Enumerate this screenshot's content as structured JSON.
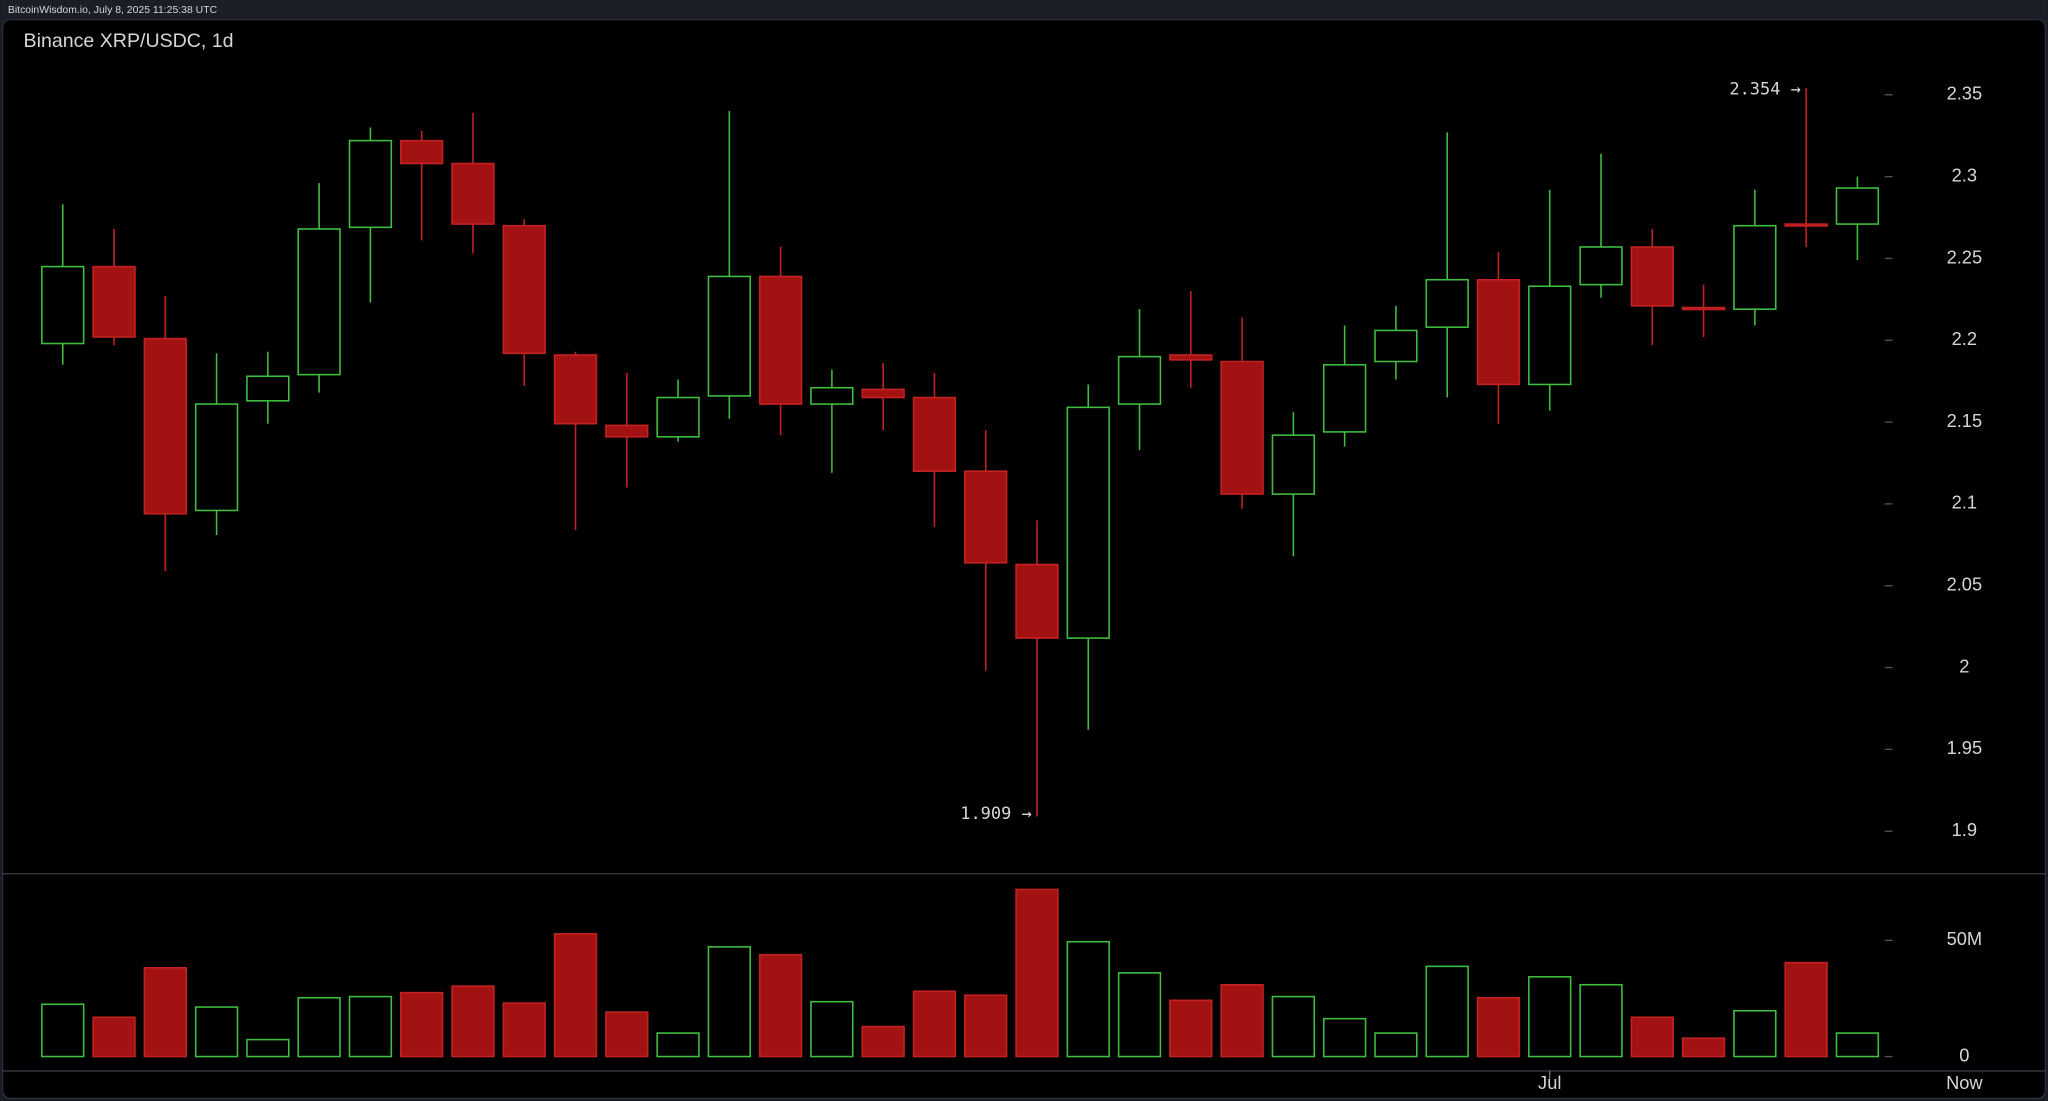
{
  "header": {
    "text": "BitcoinWisdom.io, July 8, 2025 11:25:38 UTC"
  },
  "chart_data": {
    "type": "candlestick",
    "title": "Binance XRP/USDC, 1d",
    "categories": [
      null,
      null,
      null,
      null,
      null,
      null,
      null,
      null,
      null,
      null,
      null,
      null,
      null,
      null,
      null,
      null,
      null,
      null,
      null,
      null,
      null,
      null,
      null,
      null,
      null,
      null,
      null,
      null,
      null,
      "Jul",
      null,
      null,
      null,
      null,
      null,
      null
    ],
    "now_label": "Now",
    "open": [
      2.198,
      2.245,
      2.201,
      2.096,
      2.163,
      2.179,
      2.269,
      2.322,
      2.308,
      2.27,
      2.191,
      2.148,
      2.141,
      2.166,
      2.239,
      2.161,
      2.17,
      2.165,
      2.12,
      2.063,
      2.018,
      2.161,
      2.191,
      2.187,
      2.106,
      2.144,
      2.187,
      2.208,
      2.237,
      2.173,
      2.234,
      2.257,
      2.22,
      2.219,
      2.271,
      2.271
    ],
    "high": [
      2.283,
      2.268,
      2.227,
      2.192,
      2.193,
      2.296,
      2.33,
      2.328,
      2.339,
      2.274,
      2.193,
      2.18,
      2.176,
      2.34,
      2.257,
      2.182,
      2.186,
      2.18,
      2.145,
      2.09,
      2.173,
      2.219,
      2.23,
      2.214,
      2.156,
      2.209,
      2.221,
      2.327,
      2.254,
      2.292,
      2.314,
      2.268,
      2.234,
      2.292,
      2.354,
      2.3
    ],
    "low": [
      2.185,
      2.197,
      2.059,
      2.081,
      2.149,
      2.168,
      2.223,
      2.261,
      2.253,
      2.172,
      2.084,
      2.11,
      2.138,
      2.152,
      2.142,
      2.119,
      2.145,
      2.086,
      1.998,
      1.909,
      1.962,
      2.133,
      2.171,
      2.097,
      2.068,
      2.135,
      2.176,
      2.165,
      2.149,
      2.157,
      2.226,
      2.197,
      2.202,
      2.209,
      2.257,
      2.249
    ],
    "close": [
      2.245,
      2.202,
      2.094,
      2.161,
      2.178,
      2.268,
      2.322,
      2.308,
      2.271,
      2.192,
      2.149,
      2.141,
      2.165,
      2.239,
      2.161,
      2.171,
      2.165,
      2.12,
      2.064,
      2.018,
      2.159,
      2.19,
      2.188,
      2.106,
      2.142,
      2.185,
      2.206,
      2.237,
      2.173,
      2.233,
      2.257,
      2.221,
      2.219,
      2.27,
      2.27,
      2.293
    ],
    "volume": [
      22500000,
      16900000,
      38200000,
      21300000,
      7300000,
      25300000,
      25800000,
      27500000,
      30300000,
      23000000,
      52800000,
      19100000,
      10100000,
      47200000,
      43800000,
      23600000,
      12900000,
      28100000,
      26400000,
      71900000,
      49400000,
      36000000,
      24200000,
      30900000,
      25800000,
      16300000,
      10100000,
      38800000,
      25300000,
      34300000,
      30900000,
      16900000,
      7900000,
      19700000,
      40400000,
      10100000
    ],
    "up_color": "#3fbf3f",
    "down_color": "#a31212",
    "ylim": [
      1.874,
      2.376
    ],
    "yticks": [
      1.9,
      1.95,
      2,
      2.05,
      2.1,
      2.15,
      2.2,
      2.25,
      2.3,
      2.35
    ],
    "volume_ylim": [
      -6200000,
      78650000
    ],
    "volume_yticks": [
      0,
      {
        "value": 50000000,
        "label": "50M"
      }
    ],
    "annotations": [
      {
        "text": "2.354 →",
        "value": 2.354
      },
      {
        "text": "1.909 →",
        "value": 1.909
      }
    ]
  }
}
